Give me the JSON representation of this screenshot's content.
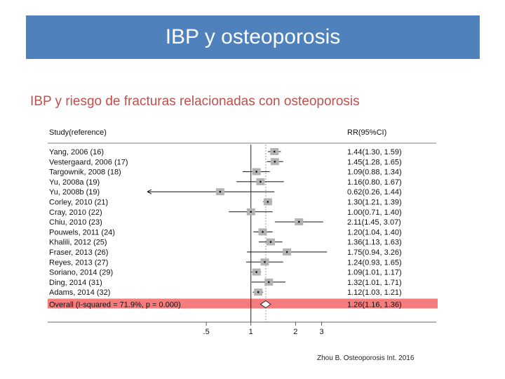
{
  "slide": {
    "title": "IBP y osteoporosis",
    "subtitle": "IBP y riesgo de fracturas relacionadas con osteoporosis",
    "citation": "Zhou B. Osteoporosis Int. 2016"
  },
  "colors": {
    "title_bg": "#4f81bd",
    "subtitle_text": "#c0504d",
    "overall_highlight": "#f47c7c",
    "weight_box": "#b3b3b3",
    "null_line": "#9a9a9a"
  },
  "chart_data": {
    "type": "forest",
    "header_left": "Study(reference)",
    "header_right": "RR(95%CI)",
    "x_scale": "log",
    "x_ticks": [
      0.5,
      1,
      2,
      3
    ],
    "x_tick_labels": [
      ".5",
      "1",
      "2",
      "3"
    ],
    "x_range": [
      0.2,
      4
    ],
    "studies": [
      {
        "label": "Yang, 2006 (16)",
        "rr": 1.44,
        "lo": 1.3,
        "hi": 1.59,
        "ci_text": "1.44(1.30, 1.59)"
      },
      {
        "label": "Vestergaard, 2006 (17)",
        "rr": 1.45,
        "lo": 1.28,
        "hi": 1.65,
        "ci_text": "1.45(1.28, 1.65)"
      },
      {
        "label": "Targownik, 2008 (18)",
        "rr": 1.09,
        "lo": 0.88,
        "hi": 1.34,
        "ci_text": "1.09(0.88, 1.34)"
      },
      {
        "label": "Yu, 2008a (19)",
        "rr": 1.16,
        "lo": 0.8,
        "hi": 1.67,
        "ci_text": "1.16(0.80, 1.67)"
      },
      {
        "label": "Yu, 2008b (19)",
        "rr": 0.62,
        "lo": 0.26,
        "hi": 1.44,
        "ci_text": "0.62(0.26, 1.44)",
        "arrow_left": true
      },
      {
        "label": "Corley, 2010 (21)",
        "rr": 1.3,
        "lo": 1.21,
        "hi": 1.39,
        "ci_text": "1.30(1.21, 1.39)"
      },
      {
        "label": "Cray, 2010 (22)",
        "rr": 1.0,
        "lo": 0.71,
        "hi": 1.4,
        "ci_text": "1.00(0.71, 1.40)"
      },
      {
        "label": "Chiu, 2010 (23)",
        "rr": 2.11,
        "lo": 1.45,
        "hi": 3.07,
        "ci_text": "2.11(1.45, 3.07)"
      },
      {
        "label": "Pouwels, 2011 (24)",
        "rr": 1.2,
        "lo": 1.04,
        "hi": 1.4,
        "ci_text": "1.20(1.04, 1.40)"
      },
      {
        "label": "Khalili, 2012 (25)",
        "rr": 1.36,
        "lo": 1.13,
        "hi": 1.63,
        "ci_text": "1.36(1.13, 1.63)"
      },
      {
        "label": "Fraser, 2013 (26)",
        "rr": 1.75,
        "lo": 0.94,
        "hi": 3.26,
        "ci_text": "1.75(0.94, 3.26)"
      },
      {
        "label": "Reyes, 2013 (27)",
        "rr": 1.24,
        "lo": 0.93,
        "hi": 1.65,
        "ci_text": "1.24(0.93, 1.65)"
      },
      {
        "label": "Soriano, 2014 (29)",
        "rr": 1.09,
        "lo": 1.01,
        "hi": 1.17,
        "ci_text": "1.09(1.01, 1.17)"
      },
      {
        "label": "Ding, 2014 (31)",
        "rr": 1.32,
        "lo": 1.01,
        "hi": 1.71,
        "ci_text": "1.32(1.01, 1.71)"
      },
      {
        "label": "Adams, 2014 (32)",
        "rr": 1.12,
        "lo": 1.03,
        "hi": 1.21,
        "ci_text": "1.12(1.03, 1.21)"
      }
    ],
    "overall": {
      "label": "Overall (I-squared = 71.9%, p = 0.000)",
      "rr": 1.26,
      "lo": 1.16,
      "hi": 1.36,
      "ci_text": "1.26(1.16, 1.36)"
    }
  }
}
